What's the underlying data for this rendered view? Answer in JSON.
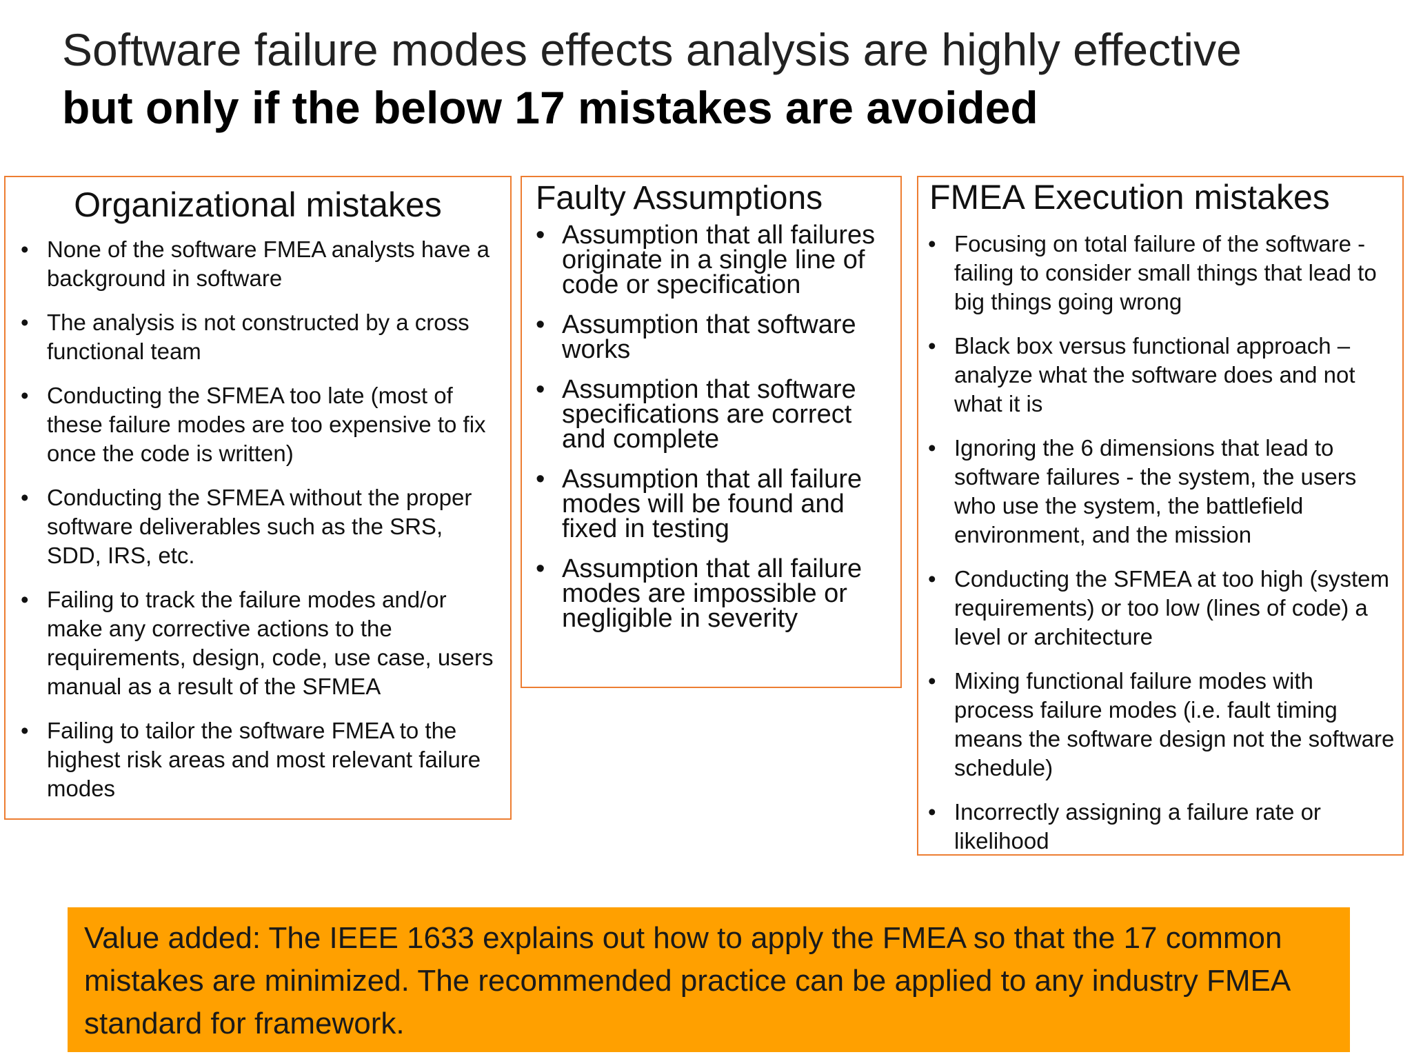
{
  "title": {
    "line1": "Software failure modes effects analysis are highly effective",
    "line2": "but only if the below 17 mistakes are avoided"
  },
  "organizational": {
    "heading": "Organizational mistakes",
    "items": [
      "None of the software FMEA analysts have a background in software",
      "The analysis is not constructed by a cross functional team",
      "Conducting the SFMEA too late (most of these failure modes are too expensive to fix once the code is written)",
      "Conducting the SFMEA without the proper software deliverables such as the SRS, SDD, IRS, etc.",
      "Failing to track the failure modes and/or make any corrective actions to the requirements, design, code, use case, users manual as a result of the SFMEA",
      "Failing to tailor the software FMEA to the highest risk areas and most relevant failure modes"
    ]
  },
  "faulty": {
    "heading": "Faulty Assumptions",
    "items": [
      "Assumption that all failures originate in a single line of code or specification",
      "Assumption that software works",
      "Assumption that software specifications are correct and complete",
      "Assumption that all failure modes will be found and fixed in testing",
      "Assumption that all failure modes are impossible or negligible in severity"
    ]
  },
  "execution": {
    "heading": "FMEA Execution mistakes",
    "items": [
      "Focusing on total failure of the software - failing to consider small things that lead to big things going wrong",
      "Black box versus functional approach – analyze what the software does and not what it is",
      "Ignoring the 6 dimensions that lead to software failures - the system, the users who use the system, the battlefield environment, and the mission",
      "Conducting the SFMEA at too high (system requirements) or too low (lines of code) a level or architecture",
      "Mixing functional failure modes with process failure modes (i.e. fault timing means the software design not the software schedule)",
      "Incorrectly assigning a failure rate or likelihood"
    ]
  },
  "value_added": {
    "text": "Value added: The IEEE 1633 explains out how to apply the FMEA so that the 17 common mistakes are minimized. The recommended practice can be applied to any industry FMEA standard for framework."
  },
  "bullet_symbol": "•",
  "colors": {
    "box_border": "#ED7D31",
    "banner_fill": "#FFA000"
  }
}
